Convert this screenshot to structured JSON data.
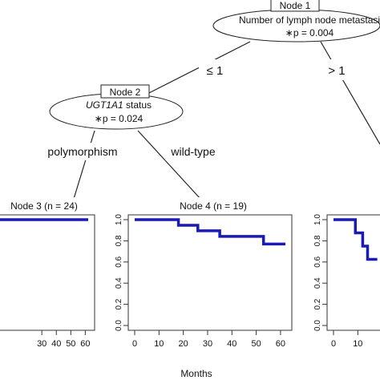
{
  "tree": {
    "node1": {
      "box": "Node 1",
      "variable": "Number  of lymph node metastasis",
      "pvalue": "∗p = 0.004"
    },
    "edge_left": "≤ 1",
    "edge_right": "> 1",
    "node2": {
      "box": "Node 2",
      "variable_italic": "UGT1A1",
      "variable_rest": " status",
      "pvalue": "∗p = 0.024"
    },
    "edge_poly": "polymorphism",
    "edge_wild": "wild-type"
  },
  "chart_data": [
    {
      "type": "line",
      "title": "Node 3 (n = 24)",
      "xticks": [
        "30",
        "40",
        "50",
        "60"
      ],
      "xlim": [
        0,
        62
      ],
      "ylim": [
        0,
        1.0
      ],
      "series": [
        {
          "x": [
            0,
            62
          ],
          "y": [
            1.0,
            1.0
          ]
        }
      ]
    },
    {
      "type": "line",
      "title": "Node 4 (n = 19)",
      "xticks": [
        "0",
        "10",
        "20",
        "30",
        "40",
        "50",
        "60"
      ],
      "yticks": [
        "0.0",
        "0.2",
        "0.4",
        "0.6",
        "0.8",
        "1.0"
      ],
      "xlim": [
        0,
        62
      ],
      "ylim": [
        0,
        1.0
      ],
      "series": [
        {
          "x": [
            0,
            18,
            18,
            26,
            26,
            35,
            35,
            53,
            53,
            62
          ],
          "y": [
            1.0,
            1.0,
            0.947,
            0.947,
            0.895,
            0.895,
            0.842,
            0.842,
            0.77,
            0.77
          ]
        }
      ]
    },
    {
      "type": "line",
      "title": "",
      "xticks": [
        "0",
        "10"
      ],
      "yticks": [
        "0.0",
        "0.2",
        "0.4",
        "0.6",
        "0.8",
        "1.0"
      ],
      "xlim": [
        0,
        62
      ],
      "ylim": [
        0,
        1.0
      ],
      "series": [
        {
          "x": [
            0,
            9,
            9,
            12,
            12,
            14,
            14,
            18
          ],
          "y": [
            1.0,
            1.0,
            0.875,
            0.875,
            0.75,
            0.75,
            0.625,
            0.625
          ]
        }
      ]
    }
  ],
  "xlabel": "Months",
  "colors": {
    "curve": "#1a1ab4",
    "axis": "#333333"
  }
}
